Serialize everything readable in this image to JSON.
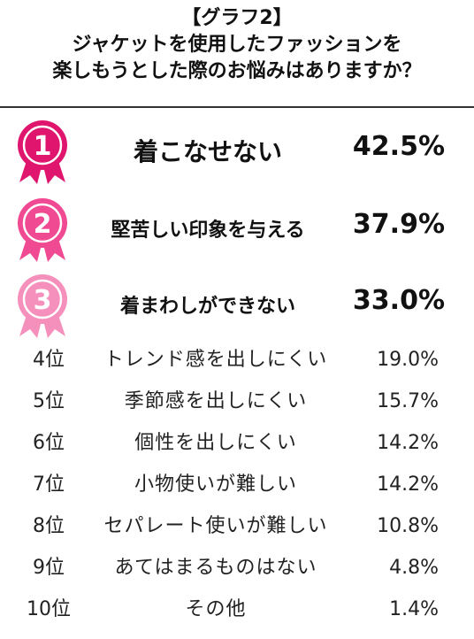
{
  "chart_data": {
    "type": "table",
    "title_lines": [
      "【グラフ2】",
      "ジャケットを使用したファッションを",
      "楽しもうとした際のお悩みはありますか？"
    ],
    "top_ranks": [
      {
        "rank": "1",
        "label": "着こなせない",
        "value": "42.5%",
        "color": "#e0156e"
      },
      {
        "rank": "2",
        "label": "堅苦しい印象を与える",
        "value": "37.9%",
        "color": "#f04a92"
      },
      {
        "rank": "3",
        "label": "着まわしができない",
        "value": "33.0%",
        "color": "#f58fbc"
      }
    ],
    "rows": [
      {
        "rank": "4位",
        "label": "トレンド感を出しにくい",
        "value": "19.0%"
      },
      {
        "rank": "5位",
        "label": "季節感を出しにくい",
        "value": "15.7%"
      },
      {
        "rank": "6位",
        "label": "個性を出しにくい",
        "value": "14.2%"
      },
      {
        "rank": "7位",
        "label": "小物使いが難しい",
        "value": "14.2%"
      },
      {
        "rank": "8位",
        "label": "セパレート使いが難しい",
        "value": "10.8%"
      },
      {
        "rank": "9位",
        "label": "あてはまるものはない",
        "value": "4.8%"
      },
      {
        "rank": "10位",
        "label": "その他",
        "value": "1.4%"
      }
    ]
  }
}
